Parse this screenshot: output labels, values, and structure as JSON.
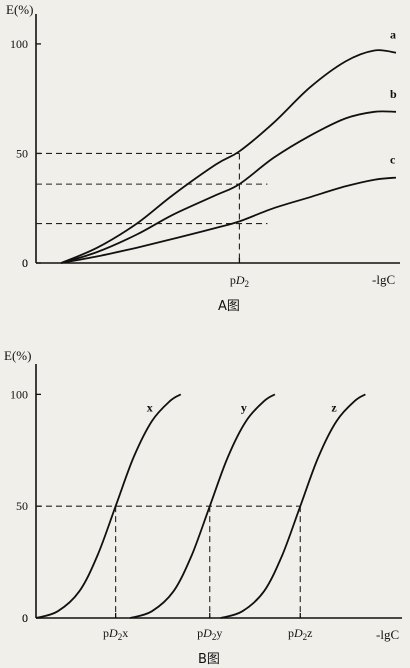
{
  "chart_data": [
    {
      "type": "line",
      "caption": "A图",
      "ylabel": "E(%)",
      "xlabel": "-lgC",
      "ylim": [
        0,
        110
      ],
      "xlim": [
        0,
        10
      ],
      "yticks": [
        "0",
        "50",
        "100"
      ],
      "xticks": [
        {
          "label_prefix": "p",
          "label_italic": "D",
          "label_sub": "2",
          "label_suffix": "",
          "value": 5.65
        }
      ],
      "reference_levels": [
        50,
        36,
        18
      ],
      "series": [
        {
          "name": "a",
          "points": [
            [
              0.7,
              0
            ],
            [
              1.7,
              7
            ],
            [
              2.8,
              18
            ],
            [
              3.8,
              31
            ],
            [
              5.0,
              45
            ],
            [
              5.65,
              51
            ],
            [
              6.6,
              64
            ],
            [
              7.6,
              80
            ],
            [
              8.6,
              92
            ],
            [
              9.4,
              97
            ],
            [
              10.0,
              96
            ]
          ]
        },
        {
          "name": "b",
          "points": [
            [
              0.7,
              0
            ],
            [
              1.7,
              5
            ],
            [
              2.8,
              13
            ],
            [
              3.8,
              22
            ],
            [
              5.0,
              31
            ],
            [
              5.65,
              36
            ],
            [
              6.6,
              48
            ],
            [
              7.6,
              58
            ],
            [
              8.6,
              66
            ],
            [
              9.4,
              69
            ],
            [
              10.0,
              69
            ]
          ]
        },
        {
          "name": "c",
          "points": [
            [
              0.7,
              0
            ],
            [
              1.7,
              3
            ],
            [
              2.8,
              7
            ],
            [
              3.8,
              11
            ],
            [
              5.0,
              16
            ],
            [
              5.65,
              19
            ],
            [
              6.6,
              25
            ],
            [
              7.6,
              30
            ],
            [
              8.6,
              35
            ],
            [
              9.4,
              38
            ],
            [
              10.0,
              39
            ]
          ]
        }
      ]
    },
    {
      "type": "line",
      "caption": "B图",
      "ylabel": "E(%)",
      "xlabel": "-lgC",
      "ylim": [
        0,
        110
      ],
      "xlim": [
        0,
        10
      ],
      "yticks": [
        "0",
        "50",
        "100"
      ],
      "xticks": [
        {
          "label_prefix": "p",
          "label_italic": "D",
          "label_sub": "2",
          "label_suffix": "x",
          "value": 2.2
        },
        {
          "label_prefix": "p",
          "label_italic": "D",
          "label_sub": "2",
          "label_suffix": "y",
          "value": 4.8
        },
        {
          "label_prefix": "p",
          "label_italic": "D",
          "label_sub": "2",
          "label_suffix": "z",
          "value": 7.3
        }
      ],
      "reference_levels": [
        50
      ],
      "series": [
        {
          "name": "x",
          "center": 2.2,
          "points": [
            [
              0,
              0
            ],
            [
              0.6,
              3
            ],
            [
              1.2,
              12
            ],
            [
              1.7,
              28
            ],
            [
              2.2,
              50
            ],
            [
              2.7,
              72
            ],
            [
              3.2,
              88
            ],
            [
              3.7,
              97
            ],
            [
              4.0,
              100
            ]
          ]
        },
        {
          "name": "y",
          "center": 4.8,
          "points": [
            [
              2.6,
              0
            ],
            [
              3.2,
              3
            ],
            [
              3.8,
              12
            ],
            [
              4.3,
              28
            ],
            [
              4.8,
              50
            ],
            [
              5.3,
              72
            ],
            [
              5.8,
              88
            ],
            [
              6.3,
              97
            ],
            [
              6.6,
              100
            ]
          ]
        },
        {
          "name": "z",
          "center": 7.3,
          "points": [
            [
              5.1,
              0
            ],
            [
              5.7,
              3
            ],
            [
              6.3,
              12
            ],
            [
              6.8,
              28
            ],
            [
              7.3,
              50
            ],
            [
              7.8,
              72
            ],
            [
              8.3,
              88
            ],
            [
              8.8,
              97
            ],
            [
              9.1,
              100
            ]
          ]
        }
      ]
    }
  ]
}
